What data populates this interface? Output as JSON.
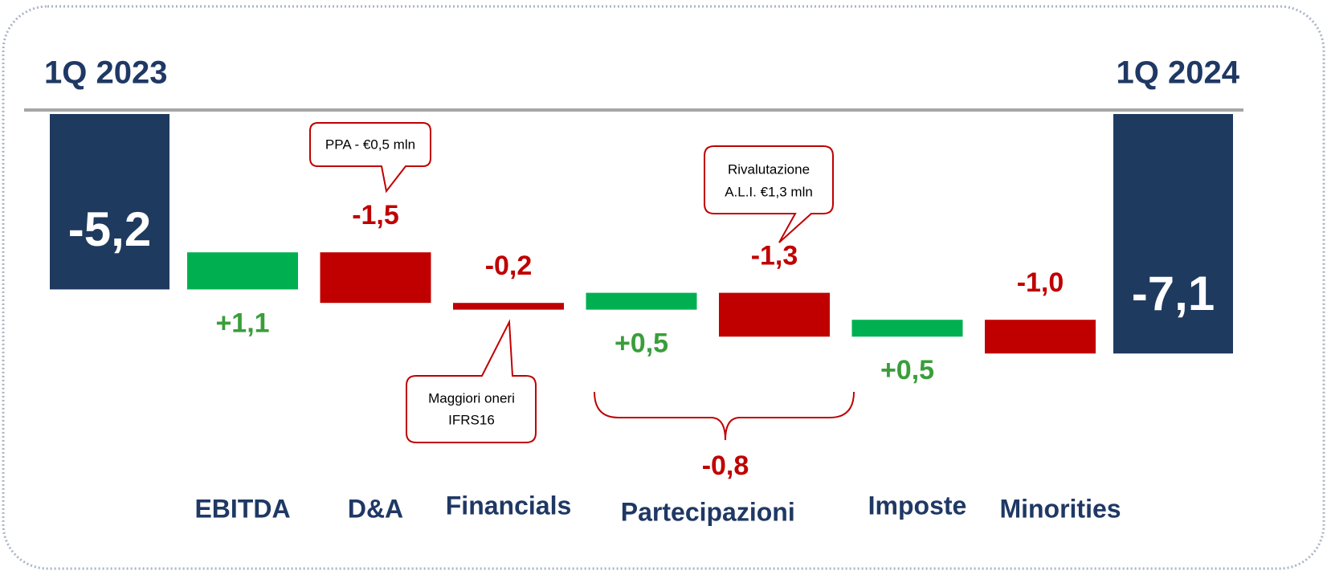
{
  "chart_data": {
    "type": "waterfall",
    "categories": [
      "1Q 2023",
      "EBITDA",
      "D&A",
      "Financials",
      "Partecipazioni",
      null,
      "Imposte",
      "Minorities",
      "1Q 2024"
    ],
    "values": [
      -5.2,
      1.1,
      -1.5,
      -0.2,
      0.5,
      -1.3,
      0.5,
      -1.0,
      -7.1
    ],
    "value_labels": [
      "-5,2",
      "+1,1",
      "-1,5",
      "-0,2",
      "+0,5",
      "-1,3",
      "+0,5",
      "-1,0",
      "-7,1"
    ],
    "totals": [
      true,
      false,
      false,
      false,
      false,
      false,
      false,
      false,
      true
    ],
    "colors": {
      "total": "#1f3a5f",
      "increase": "#00b050",
      "decrease": "#c00000"
    },
    "bracket": {
      "value": -0.8,
      "label": "-0,8"
    },
    "annotations": [
      {
        "lines": [
          "PPA - €0,5 mln"
        ]
      },
      {
        "lines": [
          "Maggiori oneri",
          "IFRS16"
        ]
      },
      {
        "lines": [
          "Rivalutazione",
          "A.L.I. €1,3 mln"
        ]
      }
    ]
  }
}
